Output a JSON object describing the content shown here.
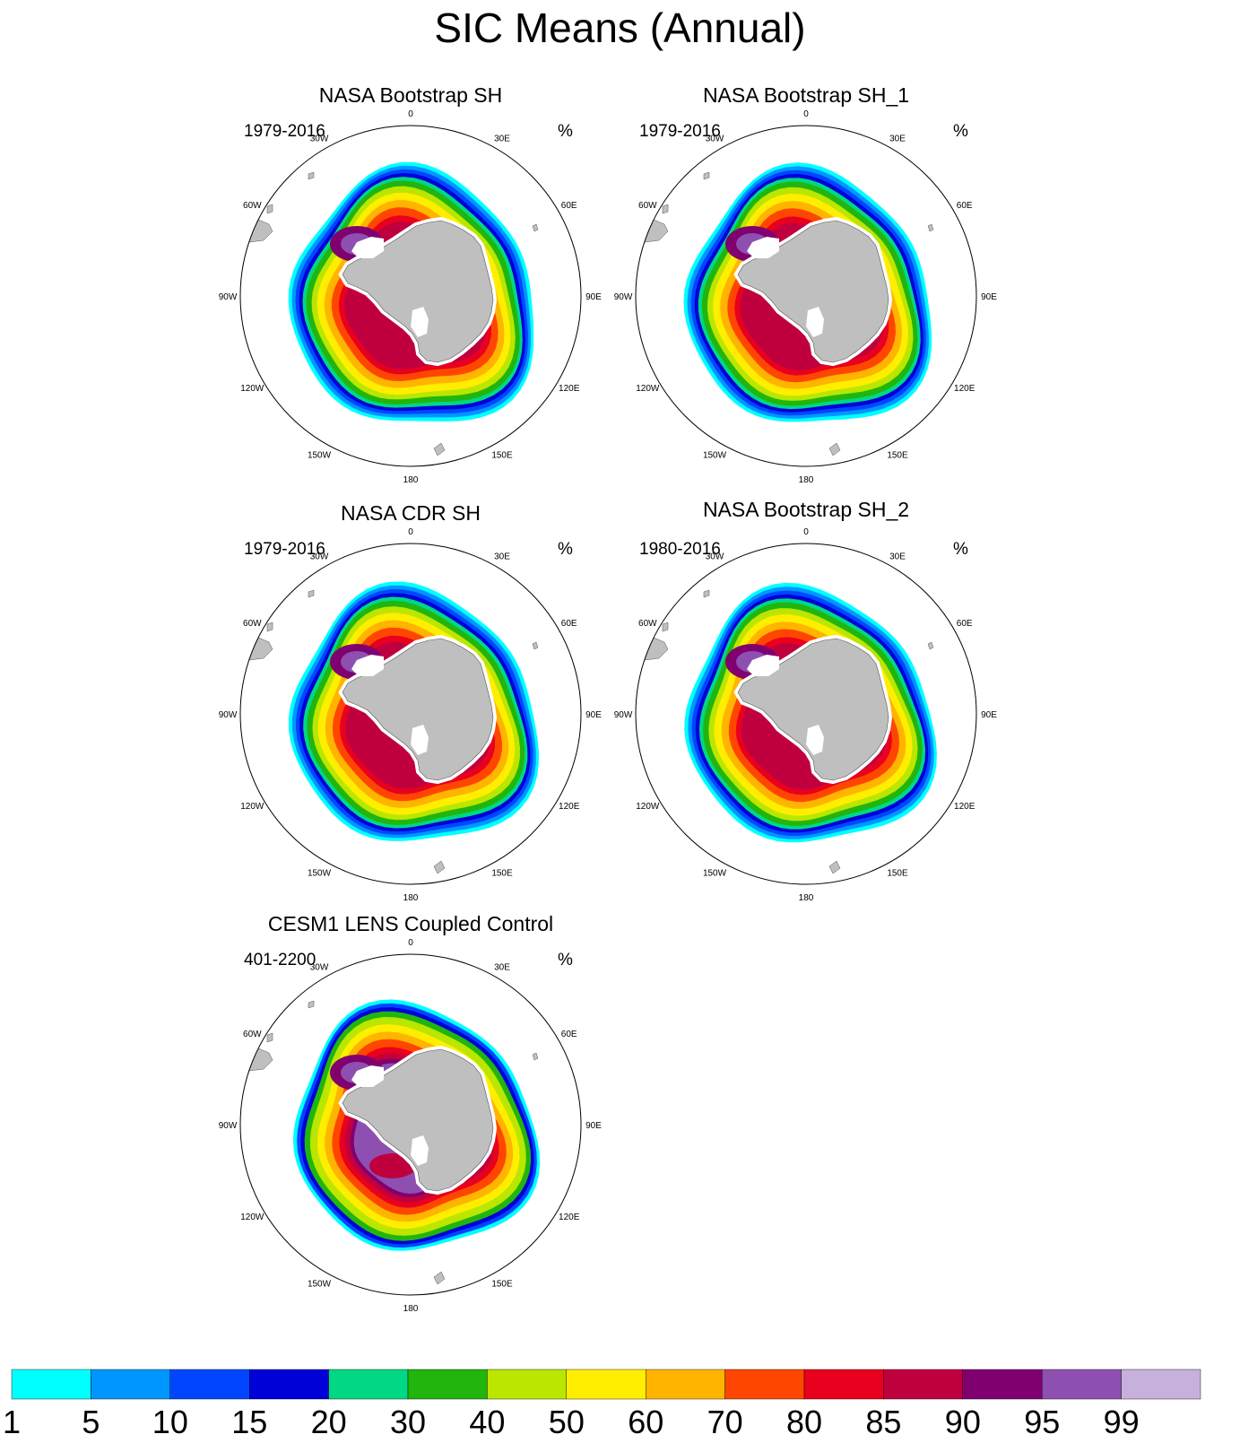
{
  "title": "SIC Means (Annual)",
  "units": "%",
  "panels": [
    {
      "title": "NASA Bootstrap SH",
      "period": "1979-2016",
      "variant": "obs"
    },
    {
      "title": "NASA Bootstrap SH_1",
      "period": "1979-2016",
      "variant": "obs"
    },
    {
      "title": "NASA CDR SH",
      "period": "1979-2016",
      "variant": "obs"
    },
    {
      "title": "NASA Bootstrap SH_2",
      "period": "1980-2016",
      "variant": "obs"
    },
    {
      "title": "CESM1 LENS Coupled Control",
      "period": "401-2200",
      "variant": "model"
    }
  ],
  "longitude_labels": [
    "0",
    "30E",
    "60E",
    "90E",
    "120E",
    "150E",
    "180",
    "150W",
    "120W",
    "90W",
    "60W",
    "30W"
  ],
  "colorbar": {
    "labels": [
      "1",
      "5",
      "10",
      "15",
      "20",
      "30",
      "40",
      "50",
      "60",
      "70",
      "80",
      "85",
      "90",
      "95",
      "99"
    ],
    "colors": [
      "#00ffff",
      "#0096ff",
      "#0046ff",
      "#0000d8",
      "#00d884",
      "#21b50e",
      "#bae600",
      "#ffee00",
      "#ffb400",
      "#ff4600",
      "#e8001e",
      "#c0003e",
      "#800070",
      "#8e50b0",
      "#c8b0dc"
    ]
  }
}
